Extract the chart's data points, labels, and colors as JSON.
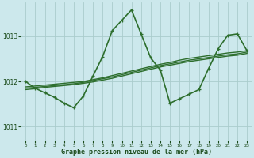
{
  "xlabel": "Graphe pression niveau de la mer (hPa)",
  "bg_color": "#cce8ec",
  "grid_color": "#aacccc",
  "line_color": "#2d6e2d",
  "xlim": [
    -0.5,
    23.5
  ],
  "ylim": [
    1010.7,
    1013.75
  ],
  "yticks": [
    1011,
    1012,
    1013
  ],
  "xticks": [
    0,
    1,
    2,
    3,
    4,
    5,
    6,
    7,
    8,
    9,
    10,
    11,
    12,
    13,
    14,
    15,
    16,
    17,
    18,
    19,
    20,
    21,
    22,
    23
  ],
  "series": [
    {
      "x": [
        0,
        1,
        2,
        3,
        4,
        5,
        6,
        7,
        8,
        9,
        10,
        11,
        12,
        13,
        14,
        15,
        16,
        17,
        18,
        19,
        20,
        21,
        22,
        23
      ],
      "y": [
        1012.0,
        1011.85,
        1011.75,
        1011.65,
        1011.52,
        1011.42,
        1011.68,
        1012.12,
        1012.55,
        1013.12,
        1013.35,
        1013.58,
        1013.05,
        1012.52,
        1012.25,
        1011.52,
        1011.62,
        1011.72,
        1011.82,
        1012.28,
        1012.72,
        1013.02,
        1013.05,
        1012.68
      ],
      "lw": 1.2,
      "marker": true
    },
    {
      "x": [
        0,
        1,
        2,
        3,
        4,
        5,
        6,
        7,
        8,
        9,
        10,
        11,
        12,
        13,
        14,
        15,
        16,
        17,
        18,
        19,
        20,
        21,
        22,
        23
      ],
      "y": [
        1011.88,
        1011.9,
        1011.92,
        1011.94,
        1011.96,
        1011.98,
        1012.0,
        1012.04,
        1012.08,
        1012.13,
        1012.18,
        1012.23,
        1012.28,
        1012.33,
        1012.38,
        1012.42,
        1012.47,
        1012.51,
        1012.54,
        1012.57,
        1012.6,
        1012.63,
        1012.65,
        1012.68
      ],
      "lw": 1.0,
      "marker": false
    },
    {
      "x": [
        0,
        1,
        2,
        3,
        4,
        5,
        6,
        7,
        8,
        9,
        10,
        11,
        12,
        13,
        14,
        15,
        16,
        17,
        18,
        19,
        20,
        21,
        22,
        23
      ],
      "y": [
        1011.85,
        1011.87,
        1011.89,
        1011.91,
        1011.93,
        1011.95,
        1011.98,
        1012.02,
        1012.06,
        1012.1,
        1012.15,
        1012.2,
        1012.25,
        1012.3,
        1012.35,
        1012.39,
        1012.43,
        1012.47,
        1012.5,
        1012.53,
        1012.56,
        1012.59,
        1012.61,
        1012.65
      ],
      "lw": 1.0,
      "marker": false
    },
    {
      "x": [
        0,
        1,
        2,
        3,
        4,
        5,
        6,
        7,
        8,
        9,
        10,
        11,
        12,
        13,
        14,
        15,
        16,
        17,
        18,
        19,
        20,
        21,
        22,
        23
      ],
      "y": [
        1011.82,
        1011.84,
        1011.87,
        1011.89,
        1011.91,
        1011.93,
        1011.96,
        1011.99,
        1012.03,
        1012.07,
        1012.12,
        1012.17,
        1012.22,
        1012.27,
        1012.32,
        1012.36,
        1012.4,
        1012.44,
        1012.47,
        1012.5,
        1012.53,
        1012.56,
        1012.58,
        1012.62
      ],
      "lw": 1.0,
      "marker": false
    }
  ]
}
